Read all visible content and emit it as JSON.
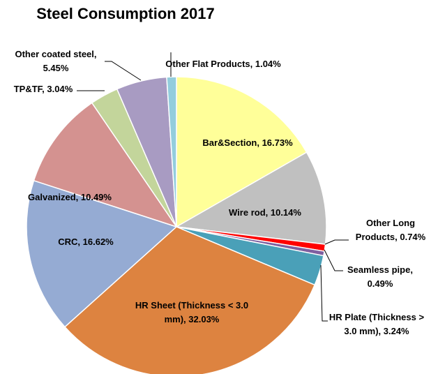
{
  "chart_data": {
    "type": "pie",
    "title": "Steel Consumption 2017",
    "values": [
      16.73,
      10.14,
      0.74,
      0.49,
      3.24,
      32.03,
      16.62,
      10.49,
      3.04,
      5.45,
      1.04
    ],
    "value_labels": [
      "Bar&Section, 16.73%",
      "Wire rod, 10.14%",
      "Other Long Products, 0.74%",
      "Seamless pipe, 0.49%",
      "HR Plate (Thickness > 3.0 mm), 3.24%",
      "HR Sheet (Thickness < 3.0 mm), 32.03%",
      "CRC, 16.62%",
      "Galvanized, 10.49%",
      "TP&TF, 3.04%",
      "Other coated steel, 5.45%",
      "Other Flat Products, 1.04%"
    ],
    "colors": [
      "#ffff99",
      "#c0c0c0",
      "#ff0000",
      "#7f5fa0",
      "#4aa0b8",
      "#dd8340",
      "#95abd3",
      "#d49290",
      "#c3d59b",
      "#a89bc2",
      "#93cddd"
    ]
  }
}
